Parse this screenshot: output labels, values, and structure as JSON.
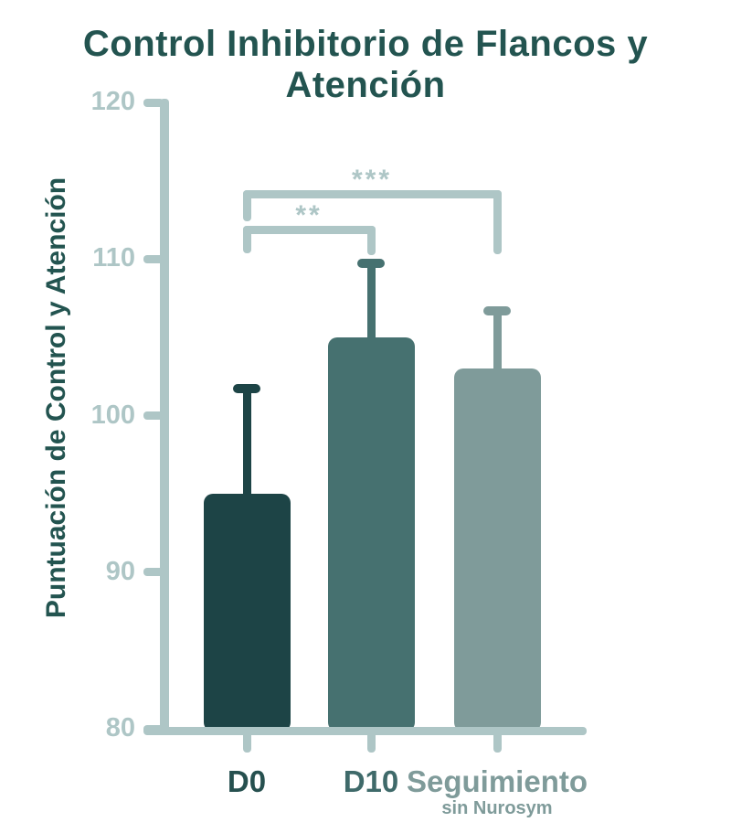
{
  "chart_data": {
    "type": "bar",
    "title": "Control Inhibitorio de Flancos y Atención",
    "ylabel": "Puntuación de Control y Atención",
    "xlabel": "",
    "ylim": [
      80,
      120
    ],
    "yticks": [
      120,
      110,
      100,
      90,
      80
    ],
    "grid": false,
    "legend_position": "none",
    "categories": [
      "D0",
      "D10",
      "Seguimiento"
    ],
    "category_sublabels": [
      "",
      "",
      "sin Nurosym"
    ],
    "values": [
      95,
      105,
      103
    ],
    "error_upper": [
      102,
      110,
      107
    ],
    "bar_colors": [
      "#1d4446",
      "#467170",
      "#7f9b9a"
    ],
    "category_label_colors": [
      "#26504f",
      "#3f6a6a",
      "#7f9b9a"
    ],
    "axis_color": "#aec6c6",
    "title_color": "#235450",
    "significance": [
      {
        "from": "D0",
        "to": "D10",
        "label": "**"
      },
      {
        "from": "D0",
        "to": "Seguimiento",
        "label": "***"
      }
    ]
  }
}
